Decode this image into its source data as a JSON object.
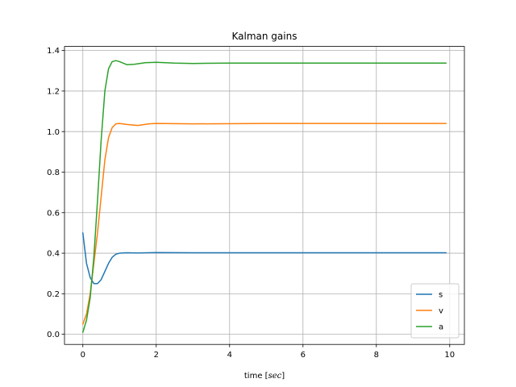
{
  "chart_data": {
    "type": "line",
    "title": "Kalman gains",
    "xlabel_prefix": "time [",
    "xlabel_unit": "sec",
    "xlabel_suffix": "]",
    "ylabel": "",
    "xlim": [
      -0.5,
      10.4
    ],
    "ylim": [
      -0.05,
      1.42
    ],
    "xticks": [
      0,
      2,
      4,
      6,
      8,
      10
    ],
    "yticks": [
      0.0,
      0.2,
      0.4,
      0.6,
      0.8,
      1.0,
      1.2,
      1.4
    ],
    "grid": true,
    "legend": "lower-right",
    "series": [
      {
        "name": "s",
        "color": "#1f77b4",
        "points": [
          [
            0,
            0.5
          ],
          [
            0.1,
            0.35
          ],
          [
            0.2,
            0.28
          ],
          [
            0.3,
            0.25
          ],
          [
            0.4,
            0.25
          ],
          [
            0.5,
            0.27
          ],
          [
            0.6,
            0.31
          ],
          [
            0.7,
            0.35
          ],
          [
            0.8,
            0.38
          ],
          [
            0.9,
            0.395
          ],
          [
            1.0,
            0.4
          ],
          [
            1.2,
            0.402
          ],
          [
            1.5,
            0.401
          ],
          [
            2.0,
            0.403
          ],
          [
            3.0,
            0.402
          ],
          [
            5.0,
            0.402
          ],
          [
            7.0,
            0.402
          ],
          [
            9.9,
            0.402
          ]
        ]
      },
      {
        "name": "v",
        "color": "#ff7f0e",
        "points": [
          [
            0,
            0.05
          ],
          [
            0.1,
            0.1
          ],
          [
            0.2,
            0.2
          ],
          [
            0.3,
            0.35
          ],
          [
            0.4,
            0.5
          ],
          [
            0.5,
            0.68
          ],
          [
            0.6,
            0.86
          ],
          [
            0.7,
            0.97
          ],
          [
            0.8,
            1.02
          ],
          [
            0.9,
            1.038
          ],
          [
            1.0,
            1.04
          ],
          [
            1.2,
            1.035
          ],
          [
            1.5,
            1.03
          ],
          [
            1.8,
            1.038
          ],
          [
            2.0,
            1.04
          ],
          [
            3.0,
            1.038
          ],
          [
            5.0,
            1.04
          ],
          [
            7.0,
            1.04
          ],
          [
            9.9,
            1.04
          ]
        ]
      },
      {
        "name": "a",
        "color": "#2ca02c",
        "points": [
          [
            0,
            0.01
          ],
          [
            0.1,
            0.07
          ],
          [
            0.2,
            0.18
          ],
          [
            0.3,
            0.38
          ],
          [
            0.4,
            0.66
          ],
          [
            0.5,
            0.96
          ],
          [
            0.6,
            1.2
          ],
          [
            0.7,
            1.31
          ],
          [
            0.8,
            1.345
          ],
          [
            0.9,
            1.35
          ],
          [
            1.0,
            1.345
          ],
          [
            1.2,
            1.33
          ],
          [
            1.4,
            1.332
          ],
          [
            1.7,
            1.34
          ],
          [
            2.0,
            1.342
          ],
          [
            2.5,
            1.338
          ],
          [
            3.0,
            1.336
          ],
          [
            4.0,
            1.338
          ],
          [
            6.0,
            1.338
          ],
          [
            8.0,
            1.338
          ],
          [
            9.9,
            1.338
          ]
        ]
      }
    ]
  }
}
